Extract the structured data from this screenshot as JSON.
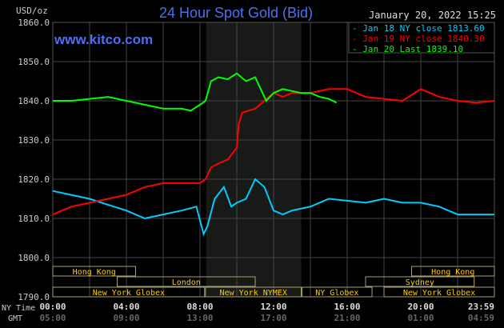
{
  "chart_data": {
    "type": "line",
    "title": "24 Hour Spot Gold (Bid)",
    "timestamp": "January 20, 2022 15:25",
    "watermark": "www.kitco.com",
    "ylabel": "USD/oz",
    "ylim": [
      1790,
      1860
    ],
    "y_ticks": [
      "1860.0",
      "1850.0",
      "1840.0",
      "1830.0",
      "1820.0",
      "1810.0",
      "1800.0",
      "1790.0"
    ],
    "xlim_hours": [
      0,
      24
    ],
    "x_row_labels": {
      "ny": "NY Time",
      "gmt": "GMT"
    },
    "x_ticks_ny": [
      "00:00",
      "04:00",
      "08:00",
      "12:00",
      "16:00",
      "20:00",
      "23:59"
    ],
    "x_ticks_gmt": [
      "05:00",
      "09:00",
      "13:00",
      "17:00",
      "21:00",
      "01:00",
      "04:59"
    ],
    "grid": true,
    "shaded_hours": [
      8.33,
      13.5
    ],
    "legend_position": "top-right",
    "series": [
      {
        "name": "Jan 18 NY close 1813.60",
        "color": "#00ccff",
        "x": [
          0,
          1,
          2,
          3,
          4,
          5,
          6,
          7,
          7.8,
          8.2,
          8.4,
          8.8,
          9.3,
          9.7,
          10,
          10.5,
          11,
          11.5,
          12,
          12.5,
          13,
          14,
          15,
          16,
          17,
          18,
          19,
          20,
          21,
          22,
          23,
          24
        ],
        "y": [
          1817,
          1816,
          1815,
          1813.5,
          1812,
          1810,
          1811,
          1812,
          1813,
          1806,
          1808,
          1815,
          1818,
          1813,
          1814,
          1815,
          1820,
          1818,
          1812,
          1811,
          1812,
          1813,
          1815,
          1814.5,
          1814,
          1815,
          1814,
          1814,
          1813,
          1811,
          1811,
          1811
        ]
      },
      {
        "name": "Jan 19 NY close 1840.30",
        "color": "#ff0000",
        "x": [
          0,
          1,
          2,
          3,
          4,
          5,
          6,
          7,
          8,
          8.3,
          8.6,
          9,
          9.5,
          10,
          10.1,
          10.3,
          11,
          11.5,
          12,
          12.5,
          13,
          14,
          15,
          16,
          17,
          18,
          19,
          20,
          21,
          22,
          23,
          24
        ],
        "y": [
          1811,
          1813,
          1814,
          1815,
          1816,
          1818,
          1819,
          1819,
          1819,
          1820,
          1823,
          1824,
          1825,
          1828,
          1834,
          1837,
          1838,
          1840,
          1842,
          1841,
          1842,
          1842,
          1843,
          1843,
          1841,
          1840.5,
          1840,
          1843,
          1841,
          1840,
          1839.5,
          1840
        ]
      },
      {
        "name": "Jan 20 Last 1839.10",
        "color": "#00ff00",
        "x": [
          0,
          1,
          2,
          3,
          4,
          5,
          6,
          7,
          7.5,
          8,
          8.3,
          8.6,
          9,
          9.5,
          10,
          10.5,
          11,
          11.3,
          11.6,
          12,
          12.5,
          13,
          13.5,
          14,
          14.5,
          15,
          15.42
        ],
        "y": [
          1840,
          1840,
          1840.5,
          1841,
          1840,
          1839,
          1838,
          1838,
          1837.5,
          1839,
          1840,
          1845,
          1846,
          1845.5,
          1847,
          1845,
          1846,
          1843,
          1840,
          1842,
          1843,
          1842.5,
          1842,
          1842,
          1841,
          1840.5,
          1839.5
        ]
      }
    ],
    "sessions": [
      {
        "label": "Hong Kong",
        "row": 0,
        "start": 0,
        "end": 4.5
      },
      {
        "label": "Hong Kong",
        "row": 0,
        "start": 19.5,
        "end": 24
      },
      {
        "label": "London",
        "row": 1,
        "start": 3.5,
        "end": 11
      },
      {
        "label": "Sydney",
        "row": 1,
        "start": 17,
        "end": 22.9
      },
      {
        "label": "New York Globex",
        "row": 2,
        "start": 0,
        "end": 8.25
      },
      {
        "label": "New York NYMEX",
        "row": 2,
        "start": 8.3,
        "end": 13.5
      },
      {
        "label": "NY Globex",
        "row": 2,
        "start": 13.55,
        "end": 17.35
      },
      {
        "label": "New York Globex",
        "row": 2,
        "start": 18.0,
        "end": 24
      }
    ]
  }
}
